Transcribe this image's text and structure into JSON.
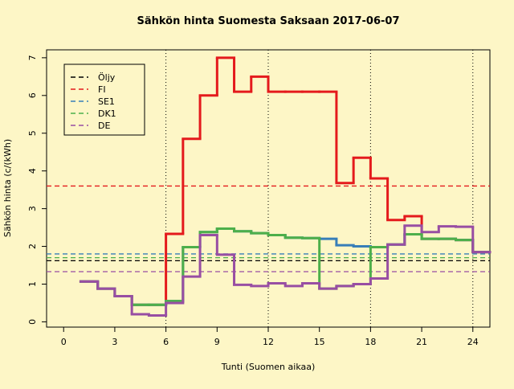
{
  "chart_data": {
    "type": "step",
    "title": "Sähkön hinta Suomesta Saksaan 2017-06-07",
    "x_label": "Tunti (Suomen aikaa)",
    "y_label": "Sähkön hinta (c/(kWh)",
    "x": [
      1,
      2,
      3,
      4,
      5,
      6,
      7,
      8,
      9,
      10,
      11,
      12,
      13,
      14,
      15,
      16,
      17,
      18,
      19,
      20,
      21,
      22,
      23,
      24
    ],
    "xlim": [
      -1,
      25
    ],
    "xticks": [
      0,
      3,
      6,
      9,
      12,
      15,
      18,
      21,
      24
    ],
    "ylim": [
      -0.14,
      7.21
    ],
    "yticks": [
      0,
      1,
      2,
      3,
      4,
      5,
      6,
      7
    ],
    "vgrid": [
      6,
      12,
      18,
      24
    ],
    "oil": {
      "name": "Öljy",
      "color": "#000000",
      "level": 1.62
    },
    "series": [
      {
        "name": "FI",
        "color": "#e41a1c",
        "level": 3.6,
        "values": [
          1.07,
          0.88,
          0.68,
          0.45,
          0.45,
          2.33,
          4.85,
          6.0,
          7.0,
          6.1,
          6.5,
          6.1,
          6.1,
          6.1,
          6.1,
          3.68,
          4.35,
          3.8,
          2.7,
          2.8,
          2.2,
          2.2,
          2.17,
          1.85
        ]
      },
      {
        "name": "SE1",
        "color": "#377eb8",
        "level": 1.8,
        "values": [
          1.07,
          0.88,
          0.68,
          0.45,
          0.45,
          0.55,
          1.98,
          2.38,
          2.47,
          2.4,
          2.35,
          2.3,
          2.23,
          2.22,
          2.2,
          2.03,
          2.0,
          1.98,
          2.05,
          2.32,
          2.2,
          2.2,
          2.17,
          1.85
        ]
      },
      {
        "name": "DK1",
        "color": "#4daf4a",
        "level": 1.7,
        "values": [
          1.07,
          0.88,
          0.68,
          0.45,
          0.45,
          0.55,
          1.98,
          2.38,
          2.47,
          2.4,
          2.35,
          2.3,
          2.23,
          2.22,
          0.88,
          0.95,
          1.0,
          1.98,
          2.05,
          2.32,
          2.2,
          2.2,
          2.17,
          1.85
        ]
      },
      {
        "name": "DE",
        "color": "#984ea3",
        "level": 1.33,
        "values": [
          1.07,
          0.88,
          0.68,
          0.2,
          0.17,
          0.5,
          1.2,
          2.3,
          1.78,
          0.98,
          0.95,
          1.02,
          0.95,
          1.02,
          0.88,
          0.95,
          1.0,
          1.15,
          2.05,
          2.55,
          2.38,
          2.53,
          2.52,
          1.85
        ]
      }
    ]
  }
}
